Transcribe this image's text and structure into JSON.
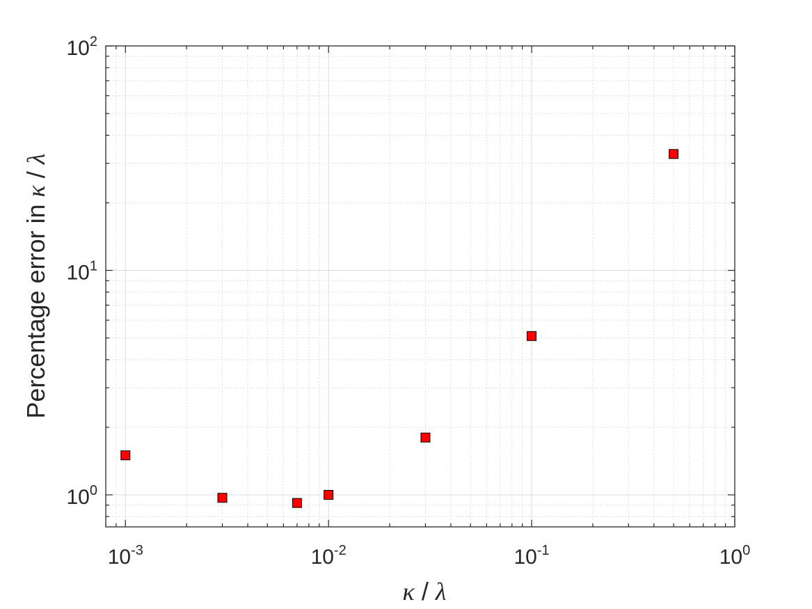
{
  "chart_data": {
    "type": "scatter",
    "xscale": "log",
    "yscale": "log",
    "xlim": [
      0.0008,
      1
    ],
    "ylim": [
      0.72,
      100
    ],
    "xticks": [
      {
        "value": 0.001,
        "base": "10",
        "exp": "-3"
      },
      {
        "value": 0.01,
        "base": "10",
        "exp": "-2"
      },
      {
        "value": 0.1,
        "base": "10",
        "exp": "-1"
      },
      {
        "value": 1,
        "base": "10",
        "exp": "0"
      }
    ],
    "yticks": [
      {
        "value": 1,
        "base": "10",
        "exp": "0"
      },
      {
        "value": 10,
        "base": "10",
        "exp": "1"
      },
      {
        "value": 100,
        "base": "10",
        "exp": "2"
      }
    ],
    "xlabel": {
      "kappa": "κ",
      "slash": " / ",
      "lambda": "λ"
    },
    "ylabel": {
      "text": "Percentage error in ",
      "kappa": "κ",
      "slash": " / ",
      "lambda": "λ"
    },
    "grid": true,
    "minor_grid": true,
    "marker": {
      "shape": "square",
      "fill": "#ff0000",
      "edge": "#000000"
    },
    "points": [
      {
        "x": 0.001,
        "y": 1.5
      },
      {
        "x": 0.003,
        "y": 0.97
      },
      {
        "x": 0.007,
        "y": 0.92
      },
      {
        "x": 0.01,
        "y": 1.0
      },
      {
        "x": 0.03,
        "y": 1.8
      },
      {
        "x": 0.1,
        "y": 5.1
      },
      {
        "x": 0.5,
        "y": 33
      }
    ]
  }
}
